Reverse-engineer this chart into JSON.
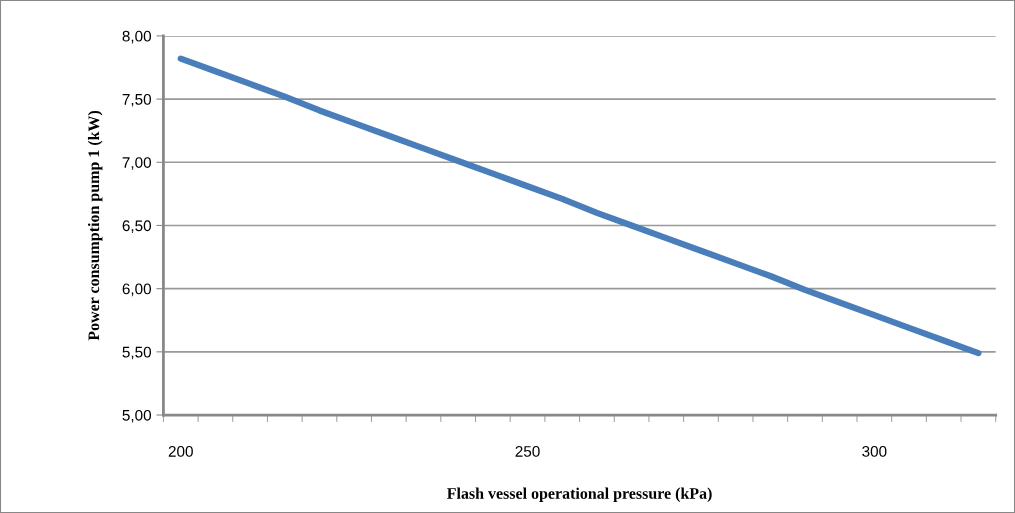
{
  "chart_data": {
    "type": "line",
    "xlabel": "Flash vessel operational pressure (kPa)",
    "ylabel": "Power consumption pump 1 (kW)",
    "categories": [
      "200",
      null,
      null,
      null,
      null,
      null,
      null,
      null,
      null,
      null,
      "250",
      null,
      null,
      null,
      null,
      null,
      null,
      null,
      null,
      null,
      "300",
      null,
      null,
      null
    ],
    "series": [
      {
        "color": "#4a7ebb",
        "values": [
          7.82,
          7.72,
          7.62,
          7.52,
          7.41,
          7.31,
          7.21,
          7.11,
          7.01,
          6.91,
          6.81,
          6.71,
          6.6,
          6.5,
          6.4,
          6.3,
          6.2,
          6.1,
          5.99,
          5.89,
          5.79,
          5.69,
          5.59,
          5.49
        ]
      }
    ],
    "ylim": [
      5,
      8
    ],
    "yticks": [
      {
        "value": 5,
        "label": "5,00"
      },
      {
        "value": 5.5,
        "label": "5,50"
      },
      {
        "value": 6,
        "label": "6,00"
      },
      {
        "value": 6.5,
        "label": "6,50"
      },
      {
        "value": 7,
        "label": "7,00"
      },
      {
        "value": 7.5,
        "label": "7,50"
      },
      {
        "value": 8,
        "label": "8,00"
      }
    ],
    "grid": "y",
    "marker": "none",
    "line_style": "solid"
  }
}
